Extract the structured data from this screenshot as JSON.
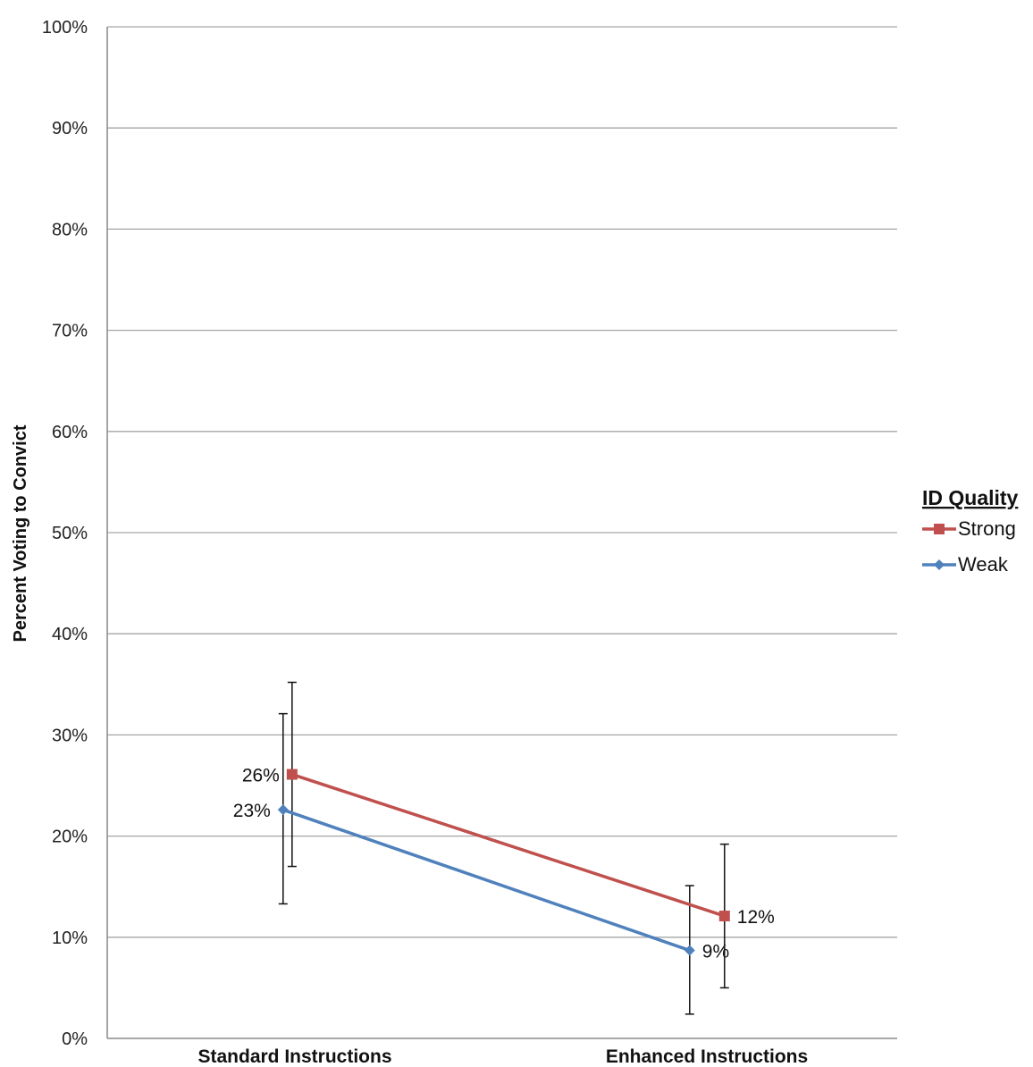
{
  "chart_data": {
    "type": "line",
    "title": "",
    "xlabel": "",
    "ylabel": "Percent Voting to Convict",
    "ylim": [
      0,
      100
    ],
    "y_tick_values": [
      0,
      10,
      20,
      30,
      40,
      50,
      60,
      70,
      80,
      90,
      100
    ],
    "y_tick_labels": [
      "0%",
      "10%",
      "20%",
      "30%",
      "40%",
      "50%",
      "60%",
      "70%",
      "80%",
      "90%",
      "100%"
    ],
    "categories": [
      "Standard Instructions",
      "Enhanced Instructions"
    ],
    "grid": true,
    "legend": {
      "title": "ID Quality",
      "placement": "right"
    },
    "series": [
      {
        "name": "Strong",
        "color": "#c0504d",
        "marker": "square",
        "values": [
          26.1,
          12.1
        ],
        "error_upper": [
          35.2,
          19.2
        ],
        "error_lower": [
          17.0,
          5.0
        ],
        "labels": [
          "26%",
          "12%"
        ]
      },
      {
        "name": "Weak",
        "color": "#4f81bd",
        "marker": "diamond",
        "values": [
          22.6,
          8.7
        ],
        "error_upper": [
          32.1,
          15.1
        ],
        "error_lower": [
          13.3,
          2.4
        ],
        "labels": [
          "23%",
          "9%"
        ]
      }
    ]
  }
}
